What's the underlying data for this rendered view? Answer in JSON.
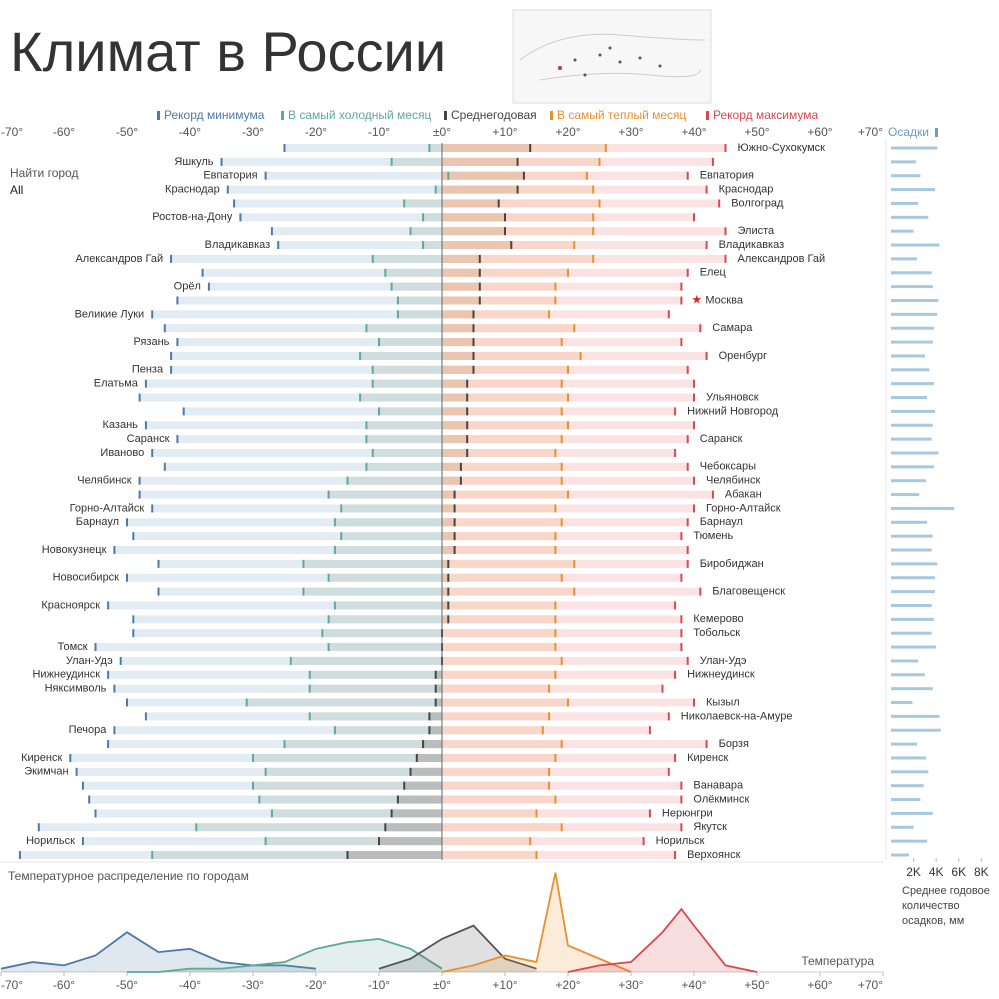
{
  "title": "Климат в России",
  "filter": {
    "label": "Найти город",
    "value": "All"
  },
  "chart_data": [
    {
      "type": "dot-range",
      "categories": [
        "Южно-Сухокумск",
        "Яшкуль",
        "Евпатория",
        "Краснодар",
        "Волгоград",
        "Ростов-на-Дону",
        "Элиста",
        "Владикавказ",
        "Александров Гай",
        "Елец",
        "Орёл",
        "Москва",
        "Великие Луки",
        "Самара",
        "Рязань",
        "Оренбург",
        "Пенза",
        "Елатьма",
        "Ульяновск",
        "Нижний Новгород",
        "Казань",
        "Саранск",
        "Иваново",
        "Чебоксары",
        "Челябинск",
        "Абакан",
        "Горно-Алтайск",
        "Барнаул",
        "Тюмень",
        "Новокузнецк",
        "Биробиджан",
        "Новосибирск",
        "Благовещенск",
        "Красноярск",
        "Кемерово",
        "Тобольск",
        "Томск",
        "Улан-Удэ",
        "Нижнеудинск",
        "Няксимволь",
        "Кызыл",
        "Николаевск-на-Амуре",
        "Печора",
        "Борзя",
        "Киренск",
        "Экимчан",
        "Ванавара",
        "Олёкминск",
        "Нерюнгри",
        "Якутск",
        "Норильск",
        "Верхоянск"
      ],
      "label_sides": [
        "right",
        "left",
        "both",
        "both",
        "right",
        "left",
        "right",
        "both",
        "both",
        "right",
        "left",
        "right",
        "left",
        "right",
        "left",
        "right",
        "left",
        "left",
        "right",
        "right",
        "left",
        "both",
        "left",
        "right",
        "both",
        "right",
        "both",
        "both",
        "right",
        "left",
        "right",
        "left",
        "right",
        "left",
        "right",
        "right",
        "left",
        "both",
        "both",
        "left",
        "right",
        "right",
        "left",
        "right",
        "both",
        "left",
        "right",
        "right",
        "right",
        "right",
        "both",
        "right"
      ],
      "highlighted_category": "Москва",
      "series": [
        {
          "name": "Рекорд минимума",
          "color": "#4e79a7",
          "values": [
            -25,
            -35,
            -28,
            -34,
            -33,
            -32,
            -27,
            -26,
            -43,
            -38,
            -37,
            -42,
            -46,
            -44,
            -42,
            -43,
            -43,
            -47,
            -48,
            -41,
            -47,
            -42,
            -46,
            -44,
            -48,
            -48,
            -46,
            -50,
            -49,
            -52,
            -45,
            -50,
            -45,
            -53,
            -49,
            -49,
            -55,
            -51,
            -53,
            -52,
            -50,
            -47,
            -52,
            -53,
            -59,
            -58,
            -57,
            -56,
            -55,
            -64,
            -57,
            -67
          ]
        },
        {
          "name": "В самый холодный месяц",
          "color": "#5fa89a",
          "values": [
            -2,
            -8,
            1,
            -1,
            -6,
            -3,
            -5,
            -3,
            -11,
            -9,
            -8,
            -7,
            -7,
            -12,
            -10,
            -13,
            -11,
            -11,
            -13,
            -10,
            -12,
            -12,
            -11,
            -12,
            -15,
            -18,
            -16,
            -17,
            -16,
            -17,
            -22,
            -18,
            -22,
            -17,
            -18,
            -19,
            -18,
            -24,
            -21,
            -21,
            -31,
            -21,
            -17,
            -25,
            -30,
            -28,
            -30,
            -29,
            -27,
            -39,
            -28,
            -46
          ]
        },
        {
          "name": "Среднегодовая",
          "color": "#444444",
          "values": [
            14,
            12,
            13,
            12,
            9,
            10,
            10,
            11,
            6,
            6,
            6,
            6,
            5,
            5,
            5,
            5,
            5,
            4,
            4,
            4,
            4,
            4,
            4,
            3,
            3,
            2,
            2,
            2,
            2,
            2,
            1,
            1,
            1,
            1,
            1,
            0,
            0,
            0,
            -1,
            -1,
            -1,
            -2,
            -2,
            -3,
            -4,
            -5,
            -6,
            -7,
            -8,
            -9,
            -10,
            -15
          ]
        },
        {
          "name": "В самый теплый месяц",
          "color": "#e8902e",
          "values": [
            26,
            25,
            23,
            24,
            25,
            24,
            24,
            21,
            24,
            20,
            18,
            18,
            17,
            21,
            19,
            22,
            20,
            19,
            20,
            19,
            20,
            19,
            18,
            19,
            19,
            20,
            18,
            19,
            18,
            18,
            21,
            19,
            21,
            18,
            18,
            18,
            18,
            19,
            18,
            17,
            20,
            17,
            16,
            19,
            18,
            17,
            17,
            18,
            15,
            19,
            14,
            15
          ]
        },
        {
          "name": "Рекорд максимума",
          "color": "#d9474f",
          "values": [
            45,
            43,
            39,
            42,
            44,
            40,
            45,
            42,
            45,
            39,
            38,
            38,
            36,
            41,
            38,
            42,
            39,
            40,
            40,
            37,
            40,
            39,
            37,
            39,
            40,
            43,
            40,
            39,
            38,
            39,
            39,
            38,
            41,
            37,
            38,
            38,
            38,
            39,
            37,
            35,
            40,
            36,
            33,
            42,
            37,
            36,
            38,
            38,
            33,
            38,
            32,
            37
          ]
        }
      ],
      "xlim": [
        -70,
        70
      ],
      "xticks": [
        {
          "value": -70,
          "label": "-70°"
        },
        {
          "value": -60,
          "label": "-60°"
        },
        {
          "value": -50,
          "label": "-50°"
        },
        {
          "value": -40,
          "label": "-40°"
        },
        {
          "value": -30,
          "label": "-30°"
        },
        {
          "value": -20,
          "label": "-20°"
        },
        {
          "value": -10,
          "label": "-10°"
        },
        {
          "value": 0,
          "label": "±0°"
        },
        {
          "value": 10,
          "label": "+10°"
        },
        {
          "value": 20,
          "label": "+20°"
        },
        {
          "value": 30,
          "label": "+30°"
        },
        {
          "value": 40,
          "label": "+40°"
        },
        {
          "value": 50,
          "label": "+50°"
        },
        {
          "value": 60,
          "label": "+60°"
        },
        {
          "value": 70,
          "label": "+70°"
        }
      ]
    },
    {
      "type": "bar",
      "orientation": "horizontal",
      "title": "Осадки",
      "axis_label": "Среднее годовое количество осадков, мм",
      "color": "#a8c8e0",
      "values": [
        4100,
        2200,
        2600,
        3900,
        2400,
        3300,
        2000,
        4300,
        2300,
        3600,
        3700,
        4200,
        4100,
        3800,
        3700,
        3000,
        3400,
        3800,
        3200,
        3900,
        3700,
        3600,
        4200,
        3800,
        3100,
        2500,
        5600,
        3200,
        3700,
        3600,
        4100,
        3900,
        3900,
        3600,
        3800,
        3600,
        4000,
        2400,
        3000,
        3700,
        1900,
        4300,
        4400,
        2300,
        3100,
        3300,
        2900,
        2600,
        3700,
        2000,
        3200,
        1600
      ],
      "xlim": [
        0,
        8500
      ],
      "xticks": [
        {
          "value": 2000,
          "label": "2K"
        },
        {
          "value": 4000,
          "label": "4K"
        },
        {
          "value": 6000,
          "label": "6K"
        },
        {
          "value": 8000,
          "label": "8K"
        }
      ]
    },
    {
      "type": "area",
      "title": "Температурное распределение по городам",
      "x_label": "Температура",
      "series": [
        {
          "color": "#4e79a7",
          "x": [
            -70,
            -65,
            -60,
            -55,
            -50,
            -45,
            -40,
            -35,
            -30,
            -25,
            -20
          ],
          "values": [
            1,
            3,
            2,
            5,
            12,
            6,
            7,
            3,
            2,
            2,
            1
          ]
        },
        {
          "color": "#5fa89a",
          "x": [
            -50,
            -45,
            -40,
            -35,
            -30,
            -25,
            -20,
            -15,
            -10,
            -5,
            0
          ],
          "values": [
            0,
            0,
            1,
            1,
            2,
            3,
            7,
            9,
            10,
            7,
            1
          ]
        },
        {
          "color": "#555555",
          "x": [
            -10,
            -5,
            0,
            5,
            10,
            15
          ],
          "values": [
            1,
            4,
            10,
            14,
            4,
            1
          ]
        },
        {
          "color": "#e8902e",
          "x": [
            0,
            5,
            10,
            15,
            18,
            20,
            25,
            30
          ],
          "values": [
            0,
            2,
            5,
            3,
            30,
            8,
            4,
            0
          ]
        },
        {
          "color": "#d9474f",
          "x": [
            20,
            25,
            30,
            35,
            38,
            40,
            45,
            50
          ],
          "values": [
            0,
            2,
            3,
            12,
            19,
            14,
            2,
            0
          ]
        }
      ],
      "xlim": [
        -70,
        70
      ],
      "ylim": [
        0,
        32
      ],
      "xticks": [
        {
          "value": -70,
          "label": "-70°"
        },
        {
          "value": -60,
          "label": "-60°"
        },
        {
          "value": -50,
          "label": "-50°"
        },
        {
          "value": -40,
          "label": "-40°"
        },
        {
          "value": -30,
          "label": "-30°"
        },
        {
          "value": -20,
          "label": "-20°"
        },
        {
          "value": -10,
          "label": "-10°"
        },
        {
          "value": 0,
          "label": "±0°"
        },
        {
          "value": 10,
          "label": "+10°"
        },
        {
          "value": 20,
          "label": "+20°"
        },
        {
          "value": 30,
          "label": "+30°"
        },
        {
          "value": 40,
          "label": "+40°"
        },
        {
          "value": 50,
          "label": "+50°"
        },
        {
          "value": 60,
          "label": "+60°"
        },
        {
          "value": 70,
          "label": "+70°"
        }
      ]
    }
  ]
}
